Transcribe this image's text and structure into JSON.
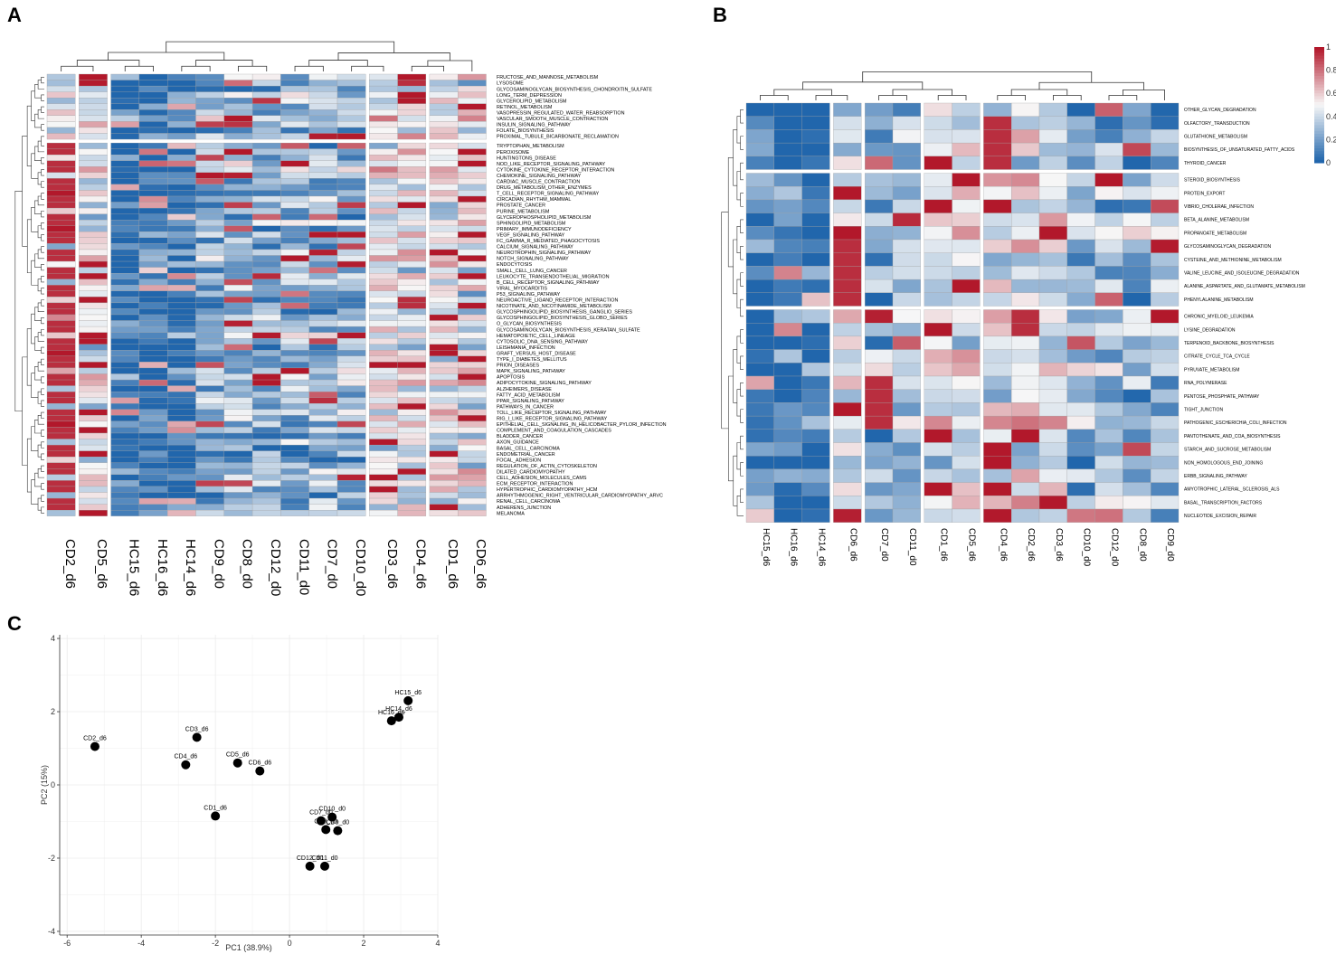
{
  "panels": {
    "a": "A",
    "b": "B",
    "c": "C"
  },
  "colors": {
    "low": "#2166ac",
    "mid": "#f7f7f7",
    "high": "#b2182b",
    "grid": "#ebebeb"
  },
  "chart_data": [
    {
      "type": "heatmap",
      "panel": "A",
      "title": "",
      "columns": [
        "CD2_d6",
        "CD5_d6",
        "HC15_d6",
        "HC16_d6",
        "HC14_d6",
        "CD9_d0",
        "CD8_d0",
        "CD12_d0",
        "CD11_d0",
        "CD7_d0",
        "CD10_d0",
        "CD3_d6",
        "CD4_d6",
        "CD1_d6",
        "CD6_d6"
      ],
      "column_gaps_after": [
        0,
        1,
        10,
        12
      ],
      "rows": [
        "FRUCTOSE_AND_MANNOSE_METABOLISM",
        "LYSOSOME",
        "GLYCOSAMINOGLYCAN_BIOSYNTHESIS_CHONDROITIN_SULFATE",
        "LONG_TERM_DEPRESSION",
        "GLYCEROLIPID_METABOLISM",
        "RETINOL_METABOLISM",
        "VASOPRESSIN_REGULATED_WATER_REABSORPTION",
        "VASCULAR_SMOOTH_MUSCLE_CONTRACTION",
        "INSULIN_SIGNALING_PATHWAY",
        "FOLATE_BIOSYNTHESIS",
        "PROXIMAL_TUBULE_BICARBONATE_RECLAMATION",
        "TRYPTOPHAN_METABOLISM",
        "PEROXISOME",
        "HUNTINGTONS_DISEASE",
        "NOD_LIKE_RECEPTOR_SIGNALING_PATHWAY",
        "CYTOKINE_CYTOKINE_RECEPTOR_INTERACTION",
        "CHEMOKINE_SIGNALING_PATHWAY",
        "CARDIAC_MUSCLE_CONTRACTION",
        "DRUG_METABOLISM_OTHER_ENZYMES",
        "T_CELL_RECEPTOR_SIGNALING_PATHWAY",
        "CIRCADIAN_RHYTHM_MAMMAL",
        "PROSTATE_CANCER",
        "PURINE_METABOLISM",
        "GLYCEROPHOSPHOLIPID_METABOLISM",
        "SPHINGOLIPID_METABOLISM",
        "PRIMARY_IMMUNODEFICIENCY",
        "VEGF_SIGNALING_PATHWAY",
        "FC_GAMMA_R_MEDIATED_PHAGOCYTOSIS",
        "CALCIUM_SIGNALING_PATHWAY",
        "NEUROTROPHIN_SIGNALING_PATHWAY",
        "NOTCH_SIGNALING_PATHWAY",
        "ENDOCYTOSIS",
        "SMALL_CELL_LUNG_CANCER",
        "LEUKOCYTE_TRANSENDOTHELIAL_MIGRATION",
        "B_CELL_RECEPTOR_SIGNALING_PATHWAY",
        "VIRAL_MYOCARDITIS",
        "P53_SIGNALING_PATHWAY",
        "NEUROACTIVE_LIGAND_RECEPTOR_INTERACTION",
        "NICOTINATE_AND_NICOTINAMIDE_METABOLISM",
        "GLYCOSPHINGOLIPID_BIOSYNTHESIS_GANGLIO_SERIES",
        "GLYCOSPHINGOLIPID_BIOSYNTHESIS_GLOBO_SERIES",
        "O_GLYCAN_BIOSYNTHESIS",
        "GLYCOSAMINOGLYCAN_BIOSYNTHESIS_KERATAN_SULFATE",
        "HEMATOPOIETIC_CELL_LINEAGE",
        "CYTOSOLIC_DNA_SENSING_PATHWAY",
        "LEISHMANIA_INFECTION",
        "GRAFT_VERSUS_HOST_DISEASE",
        "TYPE_I_DIABETES_MELLITUS",
        "PRION_DISEASES",
        "MAPK_SIGNALING_PATHWAY",
        "APOPTOSIS",
        "ADIPOCYTOKINE_SIGNALING_PATHWAY",
        "ALZHEIMERS_DISEASE",
        "FATTY_ACID_METABOLISM",
        "PPAR_SIGNALING_PATHWAY",
        "PATHWAYS_IN_CANCER",
        "TOLL_LIKE_RECEPTOR_SIGNALING_PATHWAY",
        "RIG_I_LIKE_RECEPTOR_SIGNALING_PATHWAY",
        "EPITHELIAL_CELL_SIGNALING_IN_HELICOBACTER_PYLORI_INFECTION",
        "COMPLEMENT_AND_COAGULATION_CASCADES",
        "BLADDER_CANCER",
        "AXON_GUIDANCE",
        "BASAL_CELL_CARCINOMA",
        "ENDOMETRIAL_CANCER",
        "FOCAL_ADHESION",
        "REGULATION_OF_ACTIN_CYTOSKELETON",
        "DILATED_CARDIOMYOPATHY",
        "CELL_ADHESION_MOLECULES_CAMS",
        "ECM_RECEPTOR_INTERACTION",
        "HYPERTROPHIC_CARDIOMYOPATHY_HCM",
        "ARRHYTHMOGENIC_RIGHT_VENTRICULAR_CARDIOMYOPATHY_ARVC",
        "RENAL_CELL_CARCINOMA",
        "ADHERENS_JUNCTION",
        "MELANOMA"
      ],
      "row_gaps_after": [
        10
      ],
      "value_range": [
        0,
        1
      ]
    },
    {
      "type": "heatmap",
      "panel": "B",
      "title": "",
      "columns": [
        "HC15_d6",
        "HC16_d6",
        "HC14_d6",
        "CD6_d6",
        "CD7_d0",
        "CD11_d0",
        "CD1_d6",
        "CD5_d6",
        "CD4_d6",
        "CD2_d6",
        "CD3_d6",
        "CD10_d0",
        "CD12_d0",
        "CD8_d0",
        "CD9_d0"
      ],
      "column_gaps_after": [
        2,
        3,
        5,
        7
      ],
      "rows": [
        "OTHER_GLYCAN_DEGRADATION",
        "OLFACTORY_TRANSDUCTION",
        "GLUTATHIONE_METABOLISM",
        "BIOSYNTHESIS_OF_UNSATURATED_FATTY_ACIDS",
        "THYROID_CANCER",
        "STEROID_BIOSYNTHESIS",
        "PROTEIN_EXPORT",
        "VIBRIO_CHOLERAE_INFECTION",
        "BETA_ALANINE_METABOLISM",
        "PROPANOATE_METABOLISM",
        "GLYCOSAMINOGLYCAN_DEGRADATION",
        "CYSTEINE_AND_METHIONINE_METABOLISM",
        "VALINE_LEUCINE_AND_ISOLEUCINE_DEGRADATION",
        "ALANINE_ASPARTATE_AND_GLUTAMATE_METABOLISM",
        "PHENYLALANINE_METABOLISM",
        "CHRONIC_MYELOID_LEUKEMIA",
        "LYSINE_DEGRADATION",
        "TERPENOID_BACKBONE_BIOSYNTHESIS",
        "CITRATE_CYCLE_TCA_CYCLE",
        "PYRUVATE_METABOLISM",
        "RNA_POLYMERASE",
        "PENTOSE_PHOSPHATE_PATHWAY",
        "TIGHT_JUNCTION",
        "PATHOGENIC_ESCHERICHIA_COLI_INFECTION",
        "PANTOTHENATE_AND_COA_BIOSYNTHESIS",
        "STARCH_AND_SUCROSE_METABOLISM",
        "NON_HOMOLOGOUS_END_JOINING",
        "ERBB_SIGNALING_PATHWAY",
        "AMYOTROPHIC_LATERAL_SCLEROSIS_ALS",
        "BASAL_TRANSCRIPTION_FACTORS",
        "NUCLEOTIDE_EXCISION_REPAIR"
      ],
      "row_gaps_after": [
        4,
        14
      ],
      "value_range": [
        0,
        1
      ],
      "legend": {
        "ticks": [
          "0",
          "0.2",
          "0.4",
          "0.6",
          "0.8",
          "1"
        ]
      }
    },
    {
      "type": "scatter",
      "panel": "C",
      "xlabel": "PC1 (38.9%)",
      "ylabel": "PC2 (15%)",
      "xlim": [
        -6.2,
        4.0
      ],
      "ylim": [
        -4.1,
        4.1
      ],
      "xticks": [
        "-6",
        "-4",
        "-2",
        "0",
        "2",
        "4"
      ],
      "yticks": [
        "-4",
        "-2",
        "0",
        "2",
        "4"
      ],
      "points": [
        {
          "label": "CD2_d6",
          "x": -5.25,
          "y": 1.05
        },
        {
          "label": "CD3_d6",
          "x": -2.5,
          "y": 1.3
        },
        {
          "label": "CD4_d6",
          "x": -2.8,
          "y": 0.55
        },
        {
          "label": "CD5_d6",
          "x": -1.4,
          "y": 0.6
        },
        {
          "label": "CD6_d6",
          "x": -0.8,
          "y": 0.38
        },
        {
          "label": "CD1_d6",
          "x": -2.0,
          "y": -0.85
        },
        {
          "label": "CD10_d0",
          "x": 1.15,
          "y": -0.88
        },
        {
          "label": "CD7_d0",
          "x": 0.85,
          "y": -0.98
        },
        {
          "label": "CD8_d0",
          "x": 0.98,
          "y": -1.22
        },
        {
          "label": "CD9_d0",
          "x": 1.3,
          "y": -1.25
        },
        {
          "label": "CD12_d0",
          "x": 0.55,
          "y": -2.22
        },
        {
          "label": "CD11_d0",
          "x": 0.95,
          "y": -2.22
        },
        {
          "label": "HC15_d6",
          "x": 3.2,
          "y": 2.3
        },
        {
          "label": "HC14_d6",
          "x": 2.95,
          "y": 1.85
        },
        {
          "label": "HC16_d6",
          "x": 2.75,
          "y": 1.75
        }
      ]
    }
  ]
}
